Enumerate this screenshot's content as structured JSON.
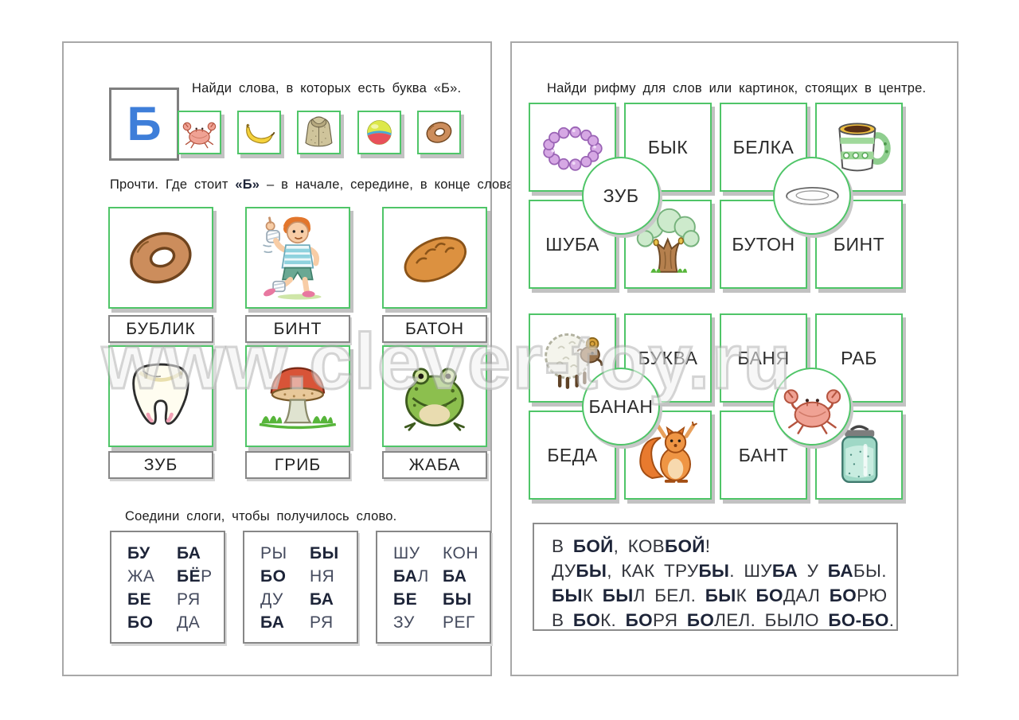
{
  "watermark": "www.clever-toy.ru",
  "colors": {
    "card_border_green": "#4fc568",
    "label_border_gray": "#878787",
    "letter_blue": "#3e7ed9",
    "bold_text": "#1d2438"
  },
  "left_page": {
    "letter": "Б",
    "find_task": {
      "instruction": "Найди слова, в которых есть буква «Б».",
      "cards": [
        {
          "icon": "crab"
        },
        {
          "icon": "banana"
        },
        {
          "icon": "fur-coat"
        },
        {
          "icon": "ball"
        },
        {
          "icon": "bagel"
        }
      ]
    },
    "position_task": {
      "instruction": [
        {
          "t": "Прочти. Где стоит "
        },
        {
          "t": "«Б»",
          "b": true
        },
        {
          "t": " – в начале, середине, в конце слова?"
        }
      ],
      "cards": [
        {
          "icon": "bagel",
          "label": "БУБЛИК"
        },
        {
          "icon": "bandaged-boy",
          "label": "БИНТ"
        },
        {
          "icon": "bread-loaf",
          "label": "БАТОН"
        },
        {
          "icon": "tooth",
          "label": "ЗУБ"
        },
        {
          "icon": "mushroom",
          "label": "ГРИБ"
        },
        {
          "icon": "frog",
          "label": "ЖАБА"
        }
      ]
    },
    "syllable_task": {
      "instruction": "Соедини слоги, чтобы получилось слово.",
      "boxes": [
        {
          "rows": [
            [
              [
                {
                  "t": "БУ",
                  "b": true
                }
              ],
              [
                {
                  "t": "БА",
                  "b": true
                }
              ]
            ],
            [
              [
                {
                  "t": "ЖА"
                }
              ],
              [
                {
                  "t": "БЁ",
                  "b": true
                },
                {
                  "t": "Р"
                }
              ]
            ],
            [
              [
                {
                  "t": "БЕ",
                  "b": true
                }
              ],
              [
                {
                  "t": "РЯ"
                }
              ]
            ],
            [
              [
                {
                  "t": "БО",
                  "b": true
                }
              ],
              [
                {
                  "t": "ДА"
                }
              ]
            ]
          ]
        },
        {
          "rows": [
            [
              [
                {
                  "t": "РЫ"
                }
              ],
              [
                {
                  "t": "БЫ",
                  "b": true
                }
              ]
            ],
            [
              [
                {
                  "t": "БО",
                  "b": true
                }
              ],
              [
                {
                  "t": "НЯ"
                }
              ]
            ],
            [
              [
                {
                  "t": "ДУ"
                }
              ],
              [
                {
                  "t": "БА",
                  "b": true
                }
              ]
            ],
            [
              [
                {
                  "t": "БА",
                  "b": true
                }
              ],
              [
                {
                  "t": "РЯ"
                }
              ]
            ]
          ]
        },
        {
          "rows": [
            [
              [
                {
                  "t": "ШУ"
                }
              ],
              [
                {
                  "t": "КОН"
                }
              ]
            ],
            [
              [
                {
                  "t": "БА",
                  "b": true
                },
                {
                  "t": "Л"
                }
              ],
              [
                {
                  "t": "БА",
                  "b": true
                }
              ]
            ],
            [
              [
                {
                  "t": "БЕ",
                  "b": true
                }
              ],
              [
                {
                  "t": "БЫ",
                  "b": true
                }
              ]
            ],
            [
              [
                {
                  "t": "ЗУ"
                }
              ],
              [
                {
                  "t": "РЕГ"
                }
              ]
            ]
          ]
        }
      ]
    }
  },
  "right_page": {
    "rhyme_task": {
      "instruction": "Найди рифму для слов или картинок, стоящих в центре.",
      "grids": [
        {
          "cards": [
            {
              "icon": "beads"
            },
            {
              "word": "БЫК"
            },
            {
              "word": "БЕЛКА"
            },
            {
              "icon": "mug"
            },
            {
              "word": "ШУБА"
            },
            {
              "icon": "oak-tree"
            },
            {
              "word": "БУТОН"
            },
            {
              "word": "БИНТ"
            }
          ],
          "circles": [
            {
              "word": "ЗУБ"
            },
            {
              "icon": "plate"
            }
          ]
        },
        {
          "cards": [
            {
              "icon": "ram"
            },
            {
              "word": "БУКВА"
            },
            {
              "word": "БАНЯ"
            },
            {
              "word": "РАБ"
            },
            {
              "word": "БЕДА"
            },
            {
              "icon": "squirrel"
            },
            {
              "word": "БАНТ"
            },
            {
              "icon": "jar"
            }
          ],
          "circles": [
            {
              "word": "БАНАН"
            },
            {
              "icon": "crab"
            }
          ]
        }
      ]
    },
    "reading_box": {
      "lines": [
        [
          {
            "t": "В "
          },
          {
            "t": "БОЙ",
            "b": true
          },
          {
            "t": ", КОВ"
          },
          {
            "t": "БОЙ",
            "b": true
          },
          {
            "t": "!"
          }
        ],
        [
          {
            "t": "ДУ"
          },
          {
            "t": "БЫ",
            "b": true
          },
          {
            "t": ", КАК ТРУ"
          },
          {
            "t": "БЫ",
            "b": true
          },
          {
            "t": ". ШУ"
          },
          {
            "t": "БА",
            "b": true
          },
          {
            "t": " У "
          },
          {
            "t": "БА",
            "b": true
          },
          {
            "t": "БЫ."
          }
        ],
        [
          {
            "t": "БЫ",
            "b": true
          },
          {
            "t": "К "
          },
          {
            "t": "БЫ",
            "b": true
          },
          {
            "t": "Л БЕЛ. "
          },
          {
            "t": "БЫ",
            "b": true
          },
          {
            "t": "К "
          },
          {
            "t": "БО",
            "b": true
          },
          {
            "t": "ДАЛ "
          },
          {
            "t": "БО",
            "b": true
          },
          {
            "t": "РЮ"
          }
        ],
        [
          {
            "t": "В "
          },
          {
            "t": "БО",
            "b": true
          },
          {
            "t": "К. "
          },
          {
            "t": "БО",
            "b": true
          },
          {
            "t": "РЯ "
          },
          {
            "t": "БО",
            "b": true
          },
          {
            "t": "ЛЕЛ. БЫЛО "
          },
          {
            "t": "БО-БО",
            "b": true
          },
          {
            "t": "."
          }
        ]
      ]
    }
  }
}
